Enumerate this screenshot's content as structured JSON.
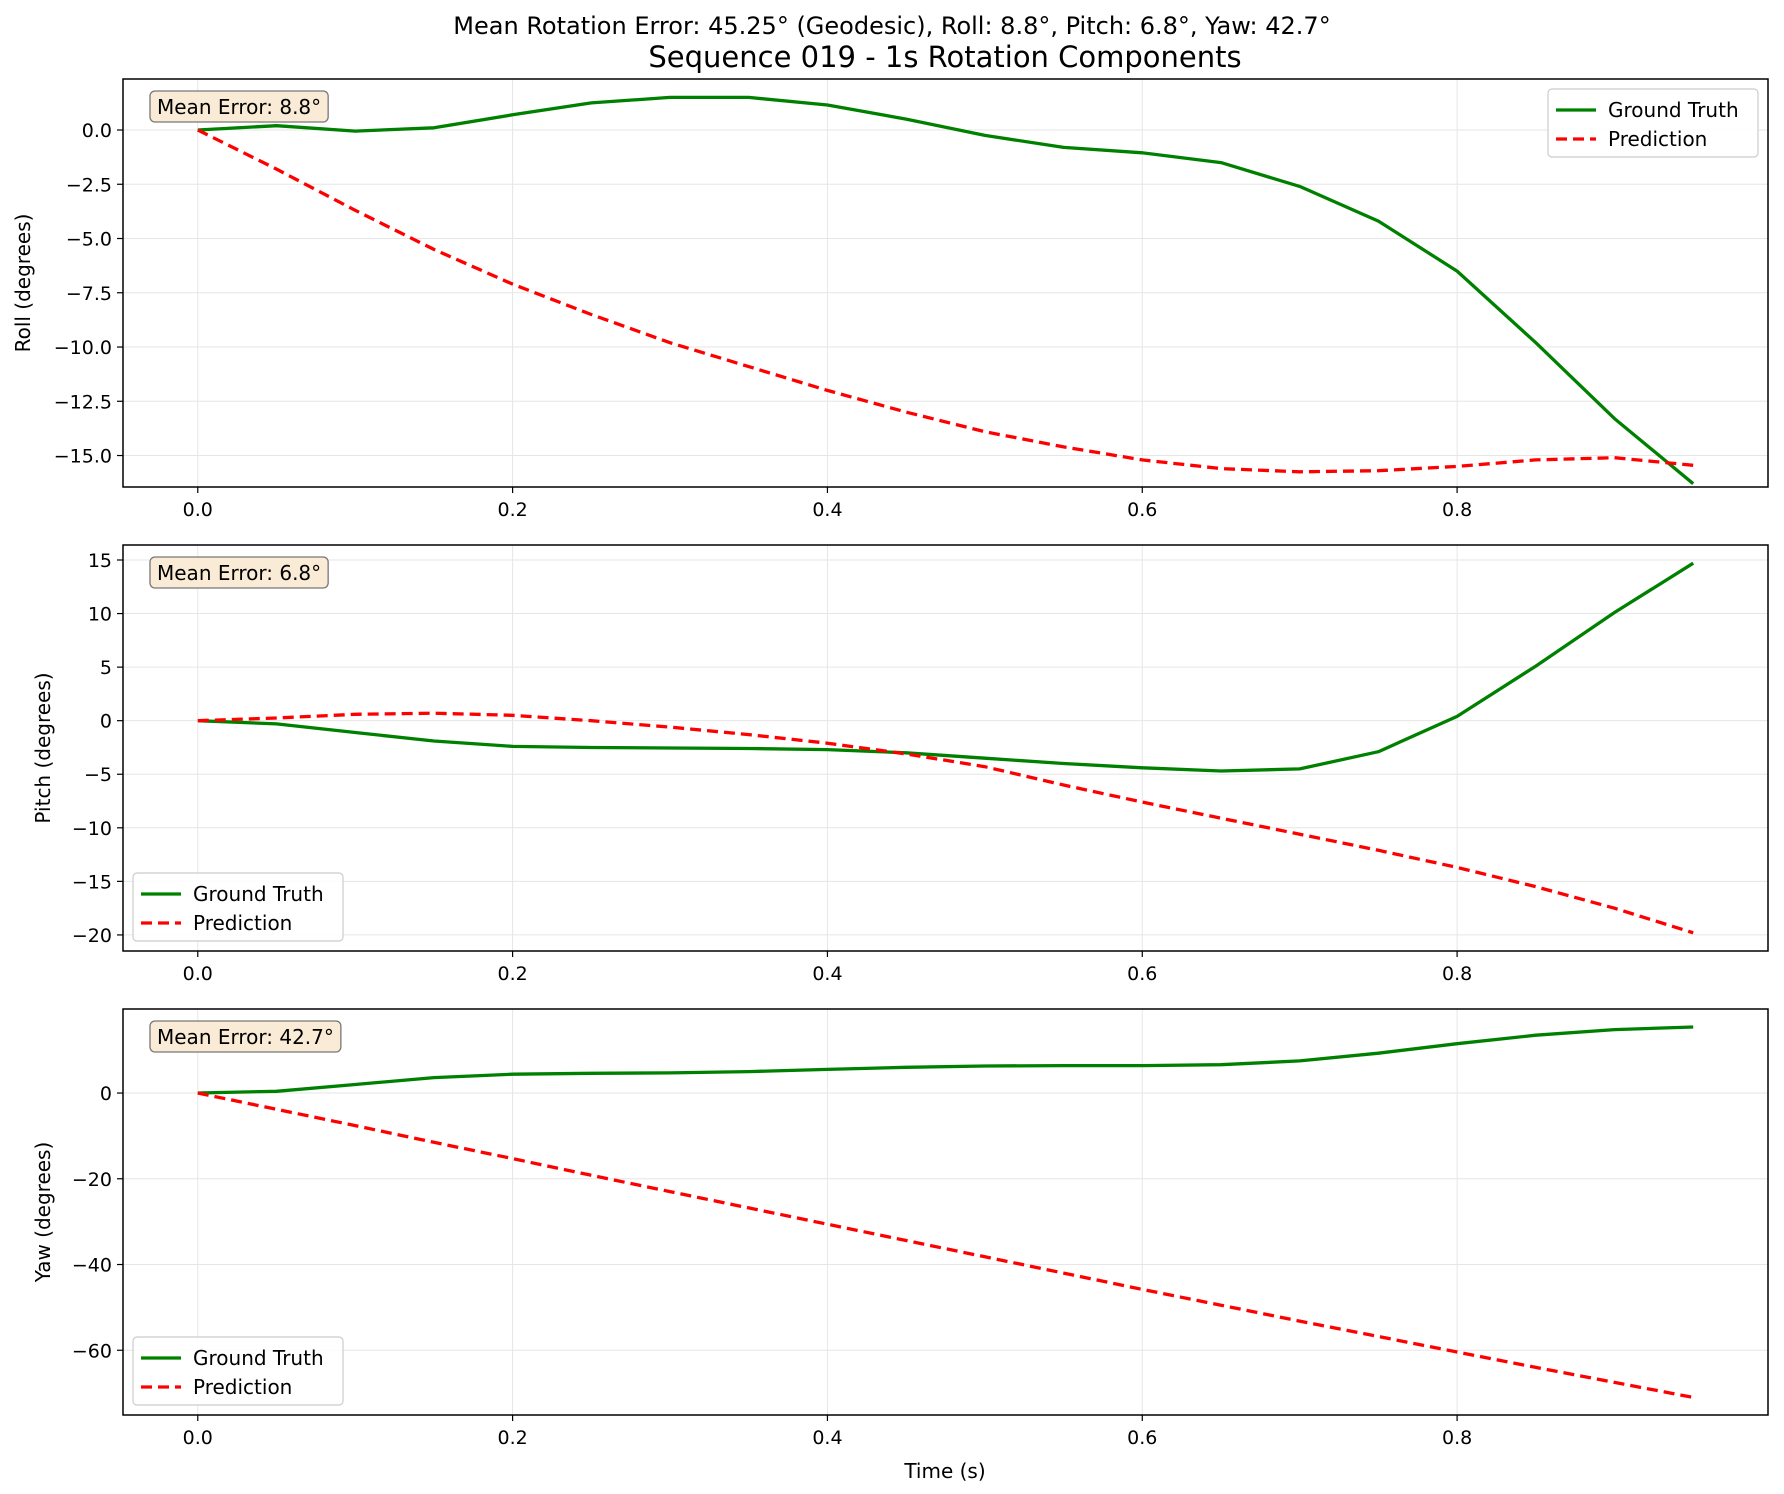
{
  "suptitle": "Mean Rotation Error: 45.25° (Geodesic), Roll: 8.8°, Pitch: 6.8°, Yaw: 42.7°",
  "title": "Sequence 019 - 1s Rotation Components",
  "colors": {
    "ground_truth": "#008000",
    "prediction": "#ff0000",
    "annotation_bg": "#f9ebd5",
    "grid": "#e6e6e6"
  },
  "legend_labels": [
    "Ground Truth",
    "Prediction"
  ],
  "xlabel": "Time (s)",
  "chart_data": [
    {
      "type": "line",
      "ylabel": "Roll (degrees)",
      "annotation": "Mean Error: 8.8°",
      "legend_loc": "upper right",
      "grid": true,
      "xlim": [
        -0.0475,
        0.9975
      ],
      "ylim": [
        -16.45,
        2.35
      ],
      "xticks": [
        0.0,
        0.2,
        0.4,
        0.6,
        0.8
      ],
      "xtick_labels": [
        "0.0",
        "0.2",
        "0.4",
        "0.6",
        "0.8"
      ],
      "yticks": [
        0.0,
        -2.5,
        -5.0,
        -7.5,
        -10.0,
        -12.5,
        -15.0
      ],
      "ytick_labels": [
        "0.0",
        "−2.5",
        "−5.0",
        "−7.5",
        "−10.0",
        "−12.5",
        "−15.0"
      ],
      "x": [
        0.0,
        0.05,
        0.1,
        0.15,
        0.2,
        0.25,
        0.3,
        0.35,
        0.4,
        0.45,
        0.5,
        0.55,
        0.6,
        0.65,
        0.7,
        0.75,
        0.8,
        0.85,
        0.9,
        0.95
      ],
      "series": [
        {
          "name": "Ground Truth",
          "values": [
            0.0,
            0.2,
            -0.05,
            0.1,
            0.7,
            1.25,
            1.5,
            1.5,
            1.15,
            0.5,
            -0.25,
            -0.8,
            -1.05,
            -1.5,
            -2.6,
            -4.2,
            -6.5,
            -9.8,
            -13.3,
            -16.3
          ]
        },
        {
          "name": "Prediction",
          "values": [
            0.0,
            -1.8,
            -3.7,
            -5.5,
            -7.1,
            -8.5,
            -9.8,
            -10.9,
            -12.0,
            -13.0,
            -13.9,
            -14.6,
            -15.2,
            -15.6,
            -15.75,
            -15.7,
            -15.5,
            -15.2,
            -15.1,
            -15.45
          ]
        }
      ]
    },
    {
      "type": "line",
      "ylabel": "Pitch (degrees)",
      "annotation": "Mean Error: 6.8°",
      "legend_loc": "lower left",
      "grid": true,
      "xlim": [
        -0.0475,
        0.9975
      ],
      "ylim": [
        -21.5,
        16.4
      ],
      "xticks": [
        0.0,
        0.2,
        0.4,
        0.6,
        0.8
      ],
      "xtick_labels": [
        "0.0",
        "0.2",
        "0.4",
        "0.6",
        "0.8"
      ],
      "yticks": [
        15,
        10,
        5,
        0,
        -5,
        -10,
        -15,
        -20
      ],
      "ytick_labels": [
        "15",
        "10",
        "5",
        "0",
        "−5",
        "−10",
        "−15",
        "−20"
      ],
      "x": [
        0.0,
        0.05,
        0.1,
        0.15,
        0.2,
        0.25,
        0.3,
        0.35,
        0.4,
        0.45,
        0.5,
        0.55,
        0.6,
        0.65,
        0.7,
        0.75,
        0.8,
        0.85,
        0.9,
        0.95
      ],
      "series": [
        {
          "name": "Ground Truth",
          "values": [
            0.0,
            -0.3,
            -1.1,
            -1.9,
            -2.4,
            -2.5,
            -2.55,
            -2.6,
            -2.7,
            -3.0,
            -3.5,
            -4.0,
            -4.4,
            -4.7,
            -4.5,
            -2.9,
            0.4,
            5.1,
            10.1,
            14.7
          ]
        },
        {
          "name": "Prediction",
          "values": [
            0.0,
            0.25,
            0.6,
            0.7,
            0.5,
            0.0,
            -0.6,
            -1.3,
            -2.1,
            -3.1,
            -4.3,
            -6.0,
            -7.6,
            -9.1,
            -10.6,
            -12.1,
            -13.7,
            -15.5,
            -17.5,
            -19.8
          ]
        }
      ]
    },
    {
      "type": "line",
      "ylabel": "Yaw (degrees)",
      "annotation": "Mean Error: 42.7°",
      "legend_loc": "lower left",
      "grid": true,
      "xlim": [
        -0.0475,
        0.9975
      ],
      "ylim": [
        -75.1,
        19.6
      ],
      "xticks": [
        0.0,
        0.2,
        0.4,
        0.6,
        0.8
      ],
      "xtick_labels": [
        "0.0",
        "0.2",
        "0.4",
        "0.6",
        "0.8"
      ],
      "yticks": [
        0,
        -20,
        -40,
        -60
      ],
      "ytick_labels": [
        "0",
        "−20",
        "−40",
        "−60"
      ],
      "x": [
        0.0,
        0.05,
        0.1,
        0.15,
        0.2,
        0.25,
        0.3,
        0.35,
        0.4,
        0.45,
        0.5,
        0.55,
        0.6,
        0.65,
        0.7,
        0.75,
        0.8,
        0.85,
        0.9,
        0.95
      ],
      "series": [
        {
          "name": "Ground Truth",
          "values": [
            0.0,
            0.4,
            2.0,
            3.6,
            4.4,
            4.6,
            4.7,
            5.0,
            5.5,
            6.0,
            6.3,
            6.4,
            6.4,
            6.6,
            7.5,
            9.3,
            11.5,
            13.5,
            14.8,
            15.4
          ]
        },
        {
          "name": "Prediction",
          "values": [
            0.0,
            -3.8,
            -7.6,
            -11.5,
            -15.3,
            -19.2,
            -23.0,
            -26.8,
            -30.6,
            -34.4,
            -38.2,
            -42.0,
            -45.8,
            -49.5,
            -53.2,
            -56.8,
            -60.4,
            -64.0,
            -67.5,
            -71.0
          ]
        }
      ]
    }
  ]
}
